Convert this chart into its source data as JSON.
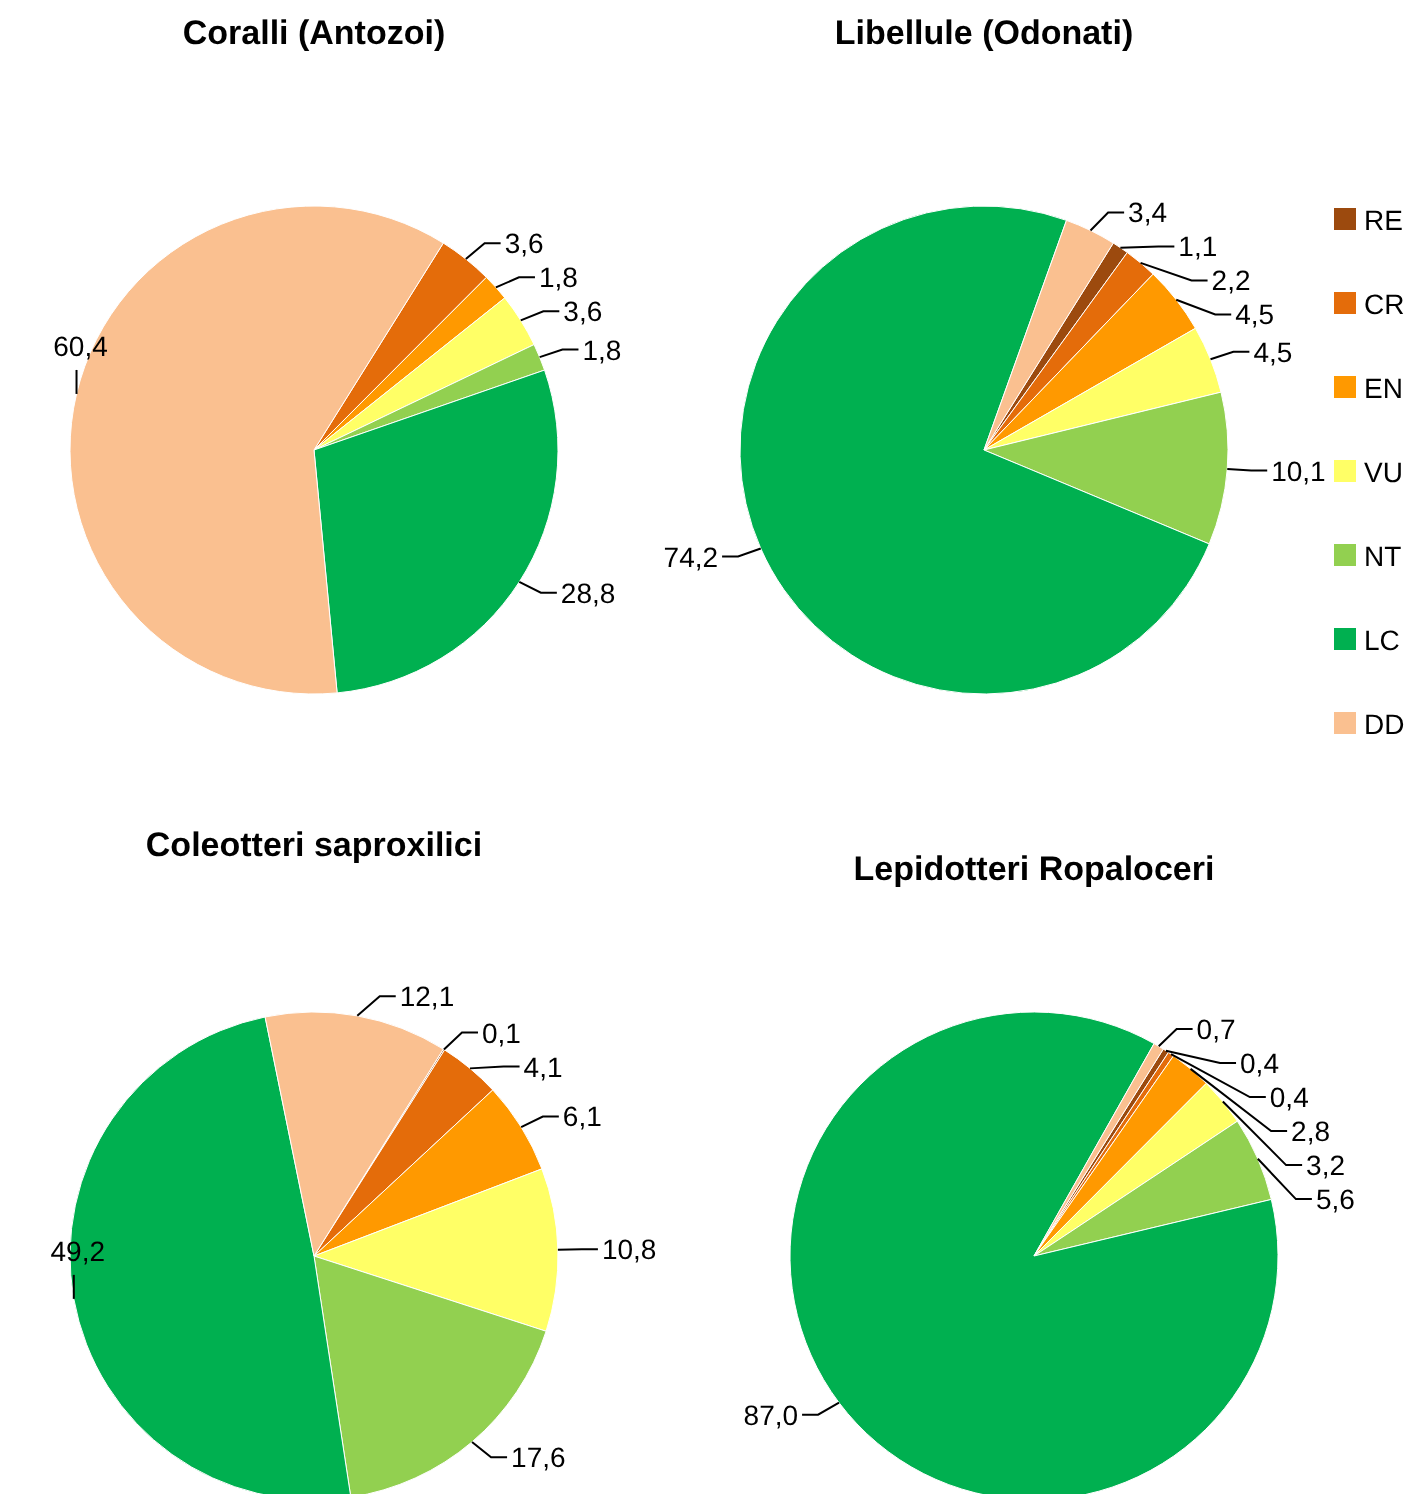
{
  "chart_data": [
    {
      "type": "pie",
      "title": "Coralli (Antozoi)",
      "values": [
        null,
        3.6,
        1.8,
        3.6,
        1.8,
        28.8,
        60.4
      ],
      "value_labels": [
        null,
        "3,6",
        "1,8",
        "3,6",
        "1,8",
        "28,8",
        "60,4"
      ],
      "colors": [
        "#9c4a0e",
        "#e46c0a",
        "#ff9900",
        "#ffff66",
        "#92d050",
        "#00b050",
        "#fac090"
      ]
    },
    {
      "type": "pie",
      "title": "Libellule (Odonati)",
      "categories": [
        "RE",
        "CR",
        "EN",
        "VU",
        "NT",
        "LC",
        "DD"
      ],
      "values": [
        1.1,
        2.2,
        4.5,
        4.5,
        10.1,
        74.2,
        3.4
      ],
      "value_labels": [
        "1,1",
        "2,2",
        "4,5",
        "4,5",
        "10,1",
        "74,2",
        "3,4"
      ],
      "colors": [
        "#9c4a0e",
        "#e46c0a",
        "#ff9900",
        "#ffff66",
        "#92d050",
        "#00b050",
        "#fac090"
      ],
      "legend": "right"
    },
    {
      "type": "pie",
      "title": "Coleotteri saproxilici",
      "values": [
        0.1,
        4.1,
        6.1,
        10.8,
        17.6,
        49.2,
        12.1
      ],
      "value_labels": [
        "0,1",
        "4,1",
        "6,1",
        "10,8",
        "17,6",
        "49,2",
        "12,1"
      ],
      "colors": [
        "#9c4a0e",
        "#e46c0a",
        "#ff9900",
        "#ffff66",
        "#92d050",
        "#00b050",
        "#fac090"
      ]
    },
    {
      "type": "pie",
      "title": "Lepidotteri Ropaloceri",
      "values": [
        0.4,
        0.4,
        2.8,
        3.2,
        5.6,
        87.0,
        0.7
      ],
      "value_labels": [
        "0,4",
        "0,4",
        "2,8",
        "3,2",
        "5,6",
        "87,0",
        "0,7"
      ],
      "colors": [
        "#9c4a0e",
        "#e46c0a",
        "#ff9900",
        "#ffff66",
        "#92d050",
        "#00b050",
        "#fac090"
      ]
    }
  ]
}
